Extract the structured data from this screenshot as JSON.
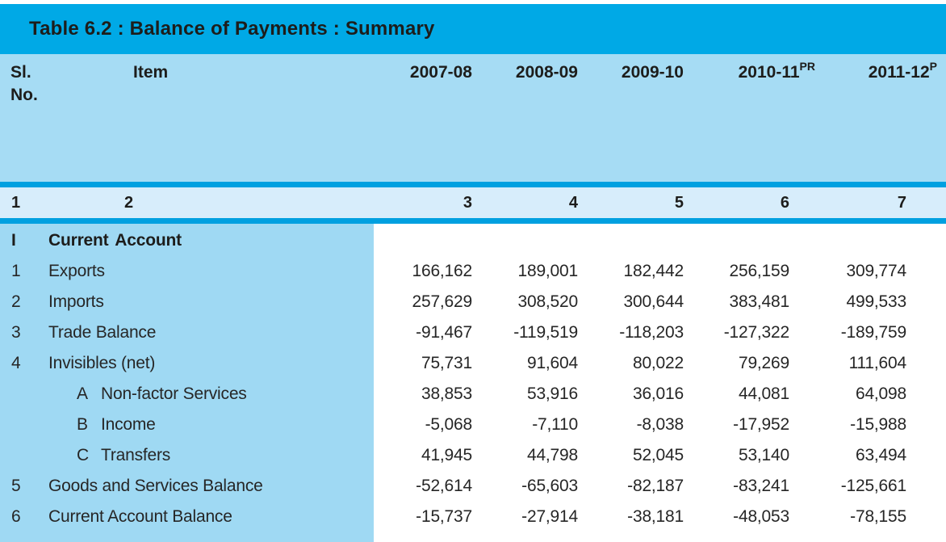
{
  "table": {
    "title": "Table 6.2 : Balance of Payments : Summary",
    "colors": {
      "accent": "#00A9E6",
      "stripe": "#00A0E0",
      "header_bg": "#A6DCF4",
      "band_bg": "#D7EDFB",
      "panel_bg": "#9FD9F3"
    },
    "columns": {
      "sl_line1": "Sl.",
      "sl_line2": "No.",
      "item_label": "Item",
      "years": [
        {
          "label": "2007-08",
          "sup": ""
        },
        {
          "label": "2008-09",
          "sup": ""
        },
        {
          "label": "2009-10",
          "sup": ""
        },
        {
          "label": "2010-11",
          "sup": "PR"
        },
        {
          "label": "2011-12",
          "sup": "P"
        }
      ]
    },
    "column_numbers": [
      "1",
      "2",
      "3",
      "4",
      "5",
      "6",
      "7"
    ],
    "rows": [
      {
        "no": "I",
        "sub": "",
        "label": "Current Account",
        "bold": true,
        "values": [
          "",
          "",
          "",
          "",
          ""
        ]
      },
      {
        "no": "1",
        "sub": "",
        "label": "Exports",
        "bold": false,
        "values": [
          "166,162",
          "189,001",
          "182,442",
          "256,159",
          "309,774"
        ]
      },
      {
        "no": "2",
        "sub": "",
        "label": "Imports",
        "bold": false,
        "values": [
          "257,629",
          "308,520",
          "300,644",
          "383,481",
          "499,533"
        ]
      },
      {
        "no": "3",
        "sub": "",
        "label": "Trade Balance",
        "bold": false,
        "values": [
          "-91,467",
          "-119,519",
          "-118,203",
          "-127,322",
          "-189,759"
        ]
      },
      {
        "no": "4",
        "sub": "",
        "label": "Invisibles (net)",
        "bold": false,
        "values": [
          "75,731",
          "91,604",
          "80,022",
          "79,269",
          "111,604"
        ]
      },
      {
        "no": "",
        "sub": "A",
        "label": "Non-factor Services",
        "bold": false,
        "values": [
          "38,853",
          "53,916",
          "36,016",
          "44,081",
          "64,098"
        ]
      },
      {
        "no": "",
        "sub": "B",
        "label": "Income",
        "bold": false,
        "values": [
          "-5,068",
          "-7,110",
          "-8,038",
          "-17,952",
          "-15,988"
        ]
      },
      {
        "no": "",
        "sub": "C",
        "label": "Transfers",
        "bold": false,
        "values": [
          "41,945",
          "44,798",
          "52,045",
          "53,140",
          "63,494"
        ]
      },
      {
        "no": "5",
        "sub": "",
        "label": "Goods and Services Balance",
        "bold": false,
        "values": [
          "-52,614",
          "-65,603",
          "-82,187",
          "-83,241",
          "-125,661"
        ]
      },
      {
        "no": "6",
        "sub": "",
        "label": "Current Account Balance",
        "bold": false,
        "values": [
          "-15,737",
          "-27,914",
          "-38,181",
          "-48,053",
          "-78,155"
        ]
      }
    ]
  }
}
